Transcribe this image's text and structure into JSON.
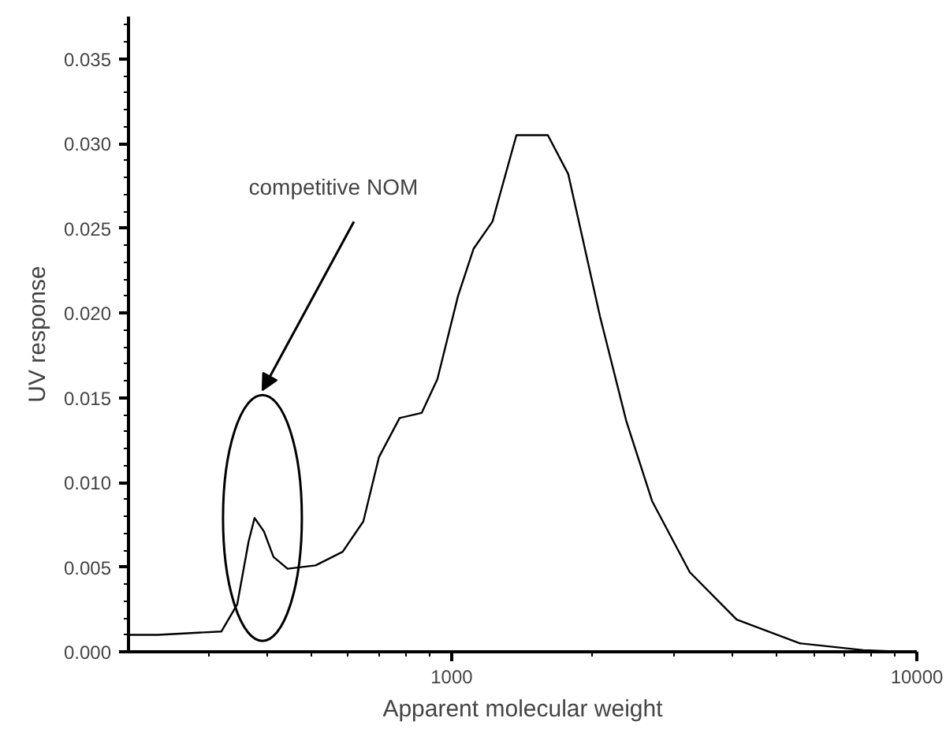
{
  "chart_data": {
    "type": "line",
    "xlabel": "Apparent molecular weight",
    "ylabel": "UV response",
    "log": "x",
    "grid": false,
    "marker": "none",
    "line_style": "solid",
    "x": [
      202,
      234,
      320,
      346,
      366,
      377,
      395,
      414,
      444,
      510,
      583,
      646,
      698,
      773,
      862,
      932,
      1032,
      1115,
      1224,
      1378,
      1610,
      1781,
      2084,
      2375,
      2697,
      3250,
      4100,
      5610,
      7670,
      9400
    ],
    "series": [
      {
        "color": "#000000",
        "values": [
          0.001,
          0.001,
          0.0012,
          0.0028,
          0.0065,
          0.0079,
          0.0071,
          0.0056,
          0.0049,
          0.0051,
          0.0059,
          0.0077,
          0.0115,
          0.0138,
          0.0141,
          0.0161,
          0.021,
          0.0238,
          0.0254,
          0.0305,
          0.0305,
          0.0282,
          0.0198,
          0.0136,
          0.0089,
          0.0047,
          0.0019,
          0.0005,
          0.0001,
          0.0
        ]
      }
    ],
    "xlim": [
      202,
      10000
    ],
    "xticks": [
      1000,
      10000
    ],
    "ylim": [
      0,
      0.0375
    ],
    "yticks": [
      {
        "value": 0,
        "label": "0.000"
      },
      {
        "value": 0.005,
        "label": "0.005"
      },
      {
        "value": 0.01,
        "label": "0.010"
      },
      {
        "value": 0.015,
        "label": "0.015"
      },
      {
        "value": 0.02,
        "label": "0.020"
      },
      {
        "value": 0.025,
        "label": "0.025"
      },
      {
        "value": 0.03,
        "label": "0.030"
      },
      {
        "value": 0.035,
        "label": "0.035"
      }
    ],
    "annotations": [
      "competitive NOM"
    ]
  }
}
